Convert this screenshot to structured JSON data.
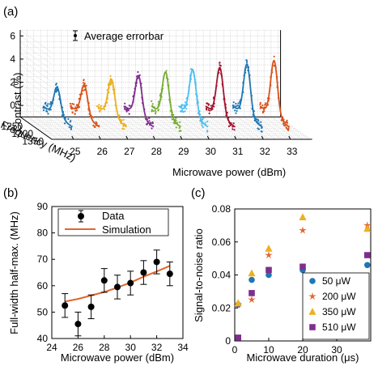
{
  "colors": {
    "blue": "#1f77b4",
    "orange_red": "#d95319",
    "yellow": "#edb120",
    "purple": "#7e2f8e",
    "green": "#77ac30",
    "light_blue": "#4dbeee",
    "dark_red": "#a2142f",
    "simulation": "#e0662e",
    "marker_c_50": "#1f77b4",
    "marker_c_200": "#e0662e",
    "marker_c_350": "#edb120",
    "marker_c_510": "#7e2f8e"
  },
  "chart_data": [
    {
      "panel": "(a)",
      "type": "line",
      "mode": "3d-waterfall",
      "zlabel": "Contrast (%)",
      "ylabel": "Frequency (MHz)",
      "xlabel": "Microwave power (dBm)",
      "x_ticks": [
        "25",
        "26",
        "27",
        "28",
        "29",
        "30",
        "31",
        "32",
        "33"
      ],
      "y_ticks": [
        "1250",
        "1300",
        "1350"
      ],
      "z_ticks": [
        "0",
        "2",
        "4",
        "6"
      ],
      "zlim": [
        -1,
        6.5
      ],
      "legend": {
        "entries": [
          "Average errorbar"
        ],
        "placement": "top-left"
      },
      "series": [
        {
          "power": 25,
          "peak_contrast": 2.5,
          "peak_frequency": 1300
        },
        {
          "power": 26,
          "peak_contrast": 2.7,
          "peak_frequency": 1300
        },
        {
          "power": 27,
          "peak_contrast": 3.2,
          "peak_frequency": 1300
        },
        {
          "power": 28,
          "peak_contrast": 3.5,
          "peak_frequency": 1300
        },
        {
          "power": 29,
          "peak_contrast": 3.8,
          "peak_frequency": 1300
        },
        {
          "power": 30,
          "peak_contrast": 4.0,
          "peak_frequency": 1300
        },
        {
          "power": 31,
          "peak_contrast": 4.2,
          "peak_frequency": 1300
        },
        {
          "power": 32,
          "peak_contrast": 4.5,
          "peak_frequency": 1300
        },
        {
          "power": 33,
          "peak_contrast": 4.8,
          "peak_frequency": 1300
        }
      ]
    },
    {
      "panel": "(b)",
      "type": "scatter",
      "xlabel": "Microwave power (dBm)",
      "ylabel": "Full-width half-max. (MHz)",
      "xlim": [
        24,
        34
      ],
      "ylim": [
        40,
        90
      ],
      "x_ticks": [
        24,
        26,
        28,
        30,
        32,
        34
      ],
      "x_tick_labels": [
        "24",
        "26",
        "28",
        "30",
        "32",
        "34"
      ],
      "y_ticks": [
        40,
        50,
        60,
        70,
        80,
        90
      ],
      "y_tick_labels": [
        "40",
        "50",
        "60",
        "70",
        "80",
        "90"
      ],
      "legend": {
        "entries": [
          "Data",
          "Simulation"
        ],
        "placement": "top-left"
      },
      "data": {
        "x": [
          25,
          26,
          27,
          28,
          29,
          30,
          31,
          32,
          33
        ],
        "y": [
          52.5,
          45.5,
          52,
          62,
          59.5,
          61,
          65,
          69,
          64.5
        ],
        "err": [
          4.5,
          4.5,
          4.5,
          4.5,
          4.5,
          4.5,
          4.5,
          4.5,
          4.5
        ]
      },
      "simulation": {
        "x": [
          25,
          26,
          27,
          28,
          29,
          30,
          31,
          32,
          33
        ],
        "y": [
          54,
          55,
          56.3,
          57.6,
          59.3,
          61.2,
          63.4,
          65.4,
          67.5
        ]
      }
    },
    {
      "panel": "(c)",
      "type": "scatter",
      "xlabel": "Microwave duration (μs)",
      "ylabel": "Signal-to-noise ratio",
      "xlim": [
        0,
        40
      ],
      "ylim": [
        0,
        0.08
      ],
      "x_ticks": [
        0,
        10,
        20,
        30
      ],
      "x_tick_labels": [
        "0",
        "10",
        "20",
        "30"
      ],
      "y_ticks": [
        0,
        0.02,
        0.04,
        0.06,
        0.08
      ],
      "y_tick_labels": [
        "0",
        "0.02",
        "0.04",
        "0.06",
        "0.08"
      ],
      "legend": {
        "entries": [
          "50 μW",
          "200 μW",
          "350 μW",
          "510 μW"
        ],
        "placement": "bottom-right"
      },
      "series": [
        {
          "name": "50 μW",
          "marker": "circle",
          "x": [
            1,
            5,
            10,
            20,
            39
          ],
          "y": [
            0.022,
            0.037,
            0.04,
            0.043,
            0.046
          ]
        },
        {
          "name": "200 μW",
          "marker": "star",
          "x": [
            1,
            5,
            10,
            20,
            39
          ],
          "y": [
            0.022,
            0.025,
            0.052,
            0.067,
            0.07
          ]
        },
        {
          "name": "350 μW",
          "marker": "triangle",
          "x": [
            1,
            5,
            10,
            20,
            39
          ],
          "y": [
            0.023,
            0.041,
            0.056,
            0.075,
            0.068
          ]
        },
        {
          "name": "510 μW",
          "marker": "square",
          "x": [
            1,
            5,
            10,
            20,
            39
          ],
          "y": [
            0.002,
            0.029,
            0.043,
            0.045,
            0.052
          ]
        }
      ]
    }
  ]
}
